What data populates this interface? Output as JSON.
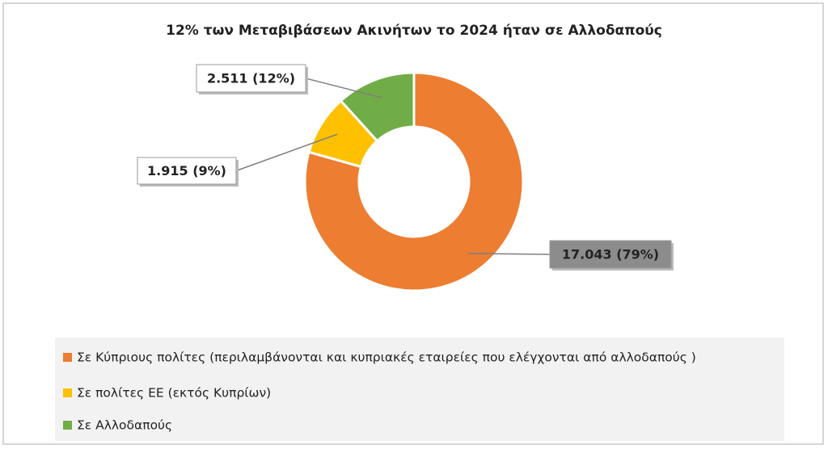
{
  "chart_data": {
    "type": "pie",
    "donut": true,
    "title": "12% των Μεταβιβάσεων Ακινήτων το 2024 ήταν σε Αλλοδαπούς",
    "categories": [
      "Σε Κύπριους πολίτες (περιλαμβάνονται και κυπριακές εταιρείες που ελέγχονται από αλλοδαπούς )",
      "Σε πολίτες ΕΕ (εκτός Κυπρίων)",
      "Σε Αλλοδαπούς"
    ],
    "values": [
      17043,
      1915,
      2511
    ],
    "value_labels": [
      "17.043 (79%)",
      "1.915 (9%)",
      "2.511 (12%)"
    ],
    "colors": [
      "#ed7d31",
      "#ffc000",
      "#70ad47"
    ],
    "legend": "bottom"
  }
}
